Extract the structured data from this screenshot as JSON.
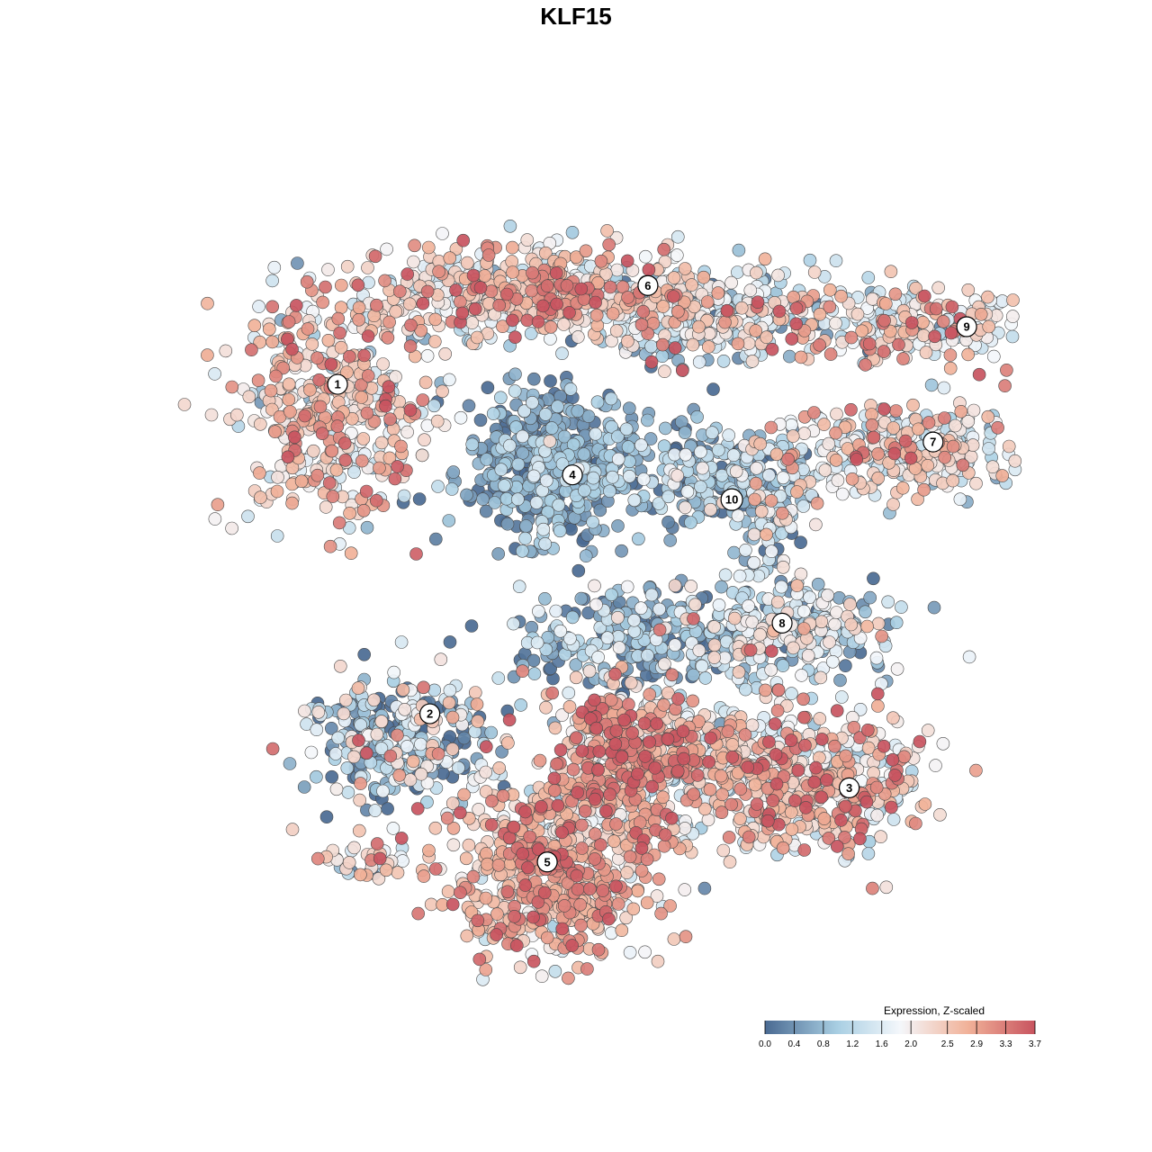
{
  "chart_data": {
    "type": "scatter",
    "title": "KLF15",
    "xlabel": "",
    "ylabel": "",
    "xlim": [
      0,
      100
    ],
    "ylim": [
      0,
      100
    ],
    "grid": false,
    "legend": {
      "title": "Expression, Z-scaled",
      "placement": "bottom-right",
      "ticks": [
        "0.0",
        "0.4",
        "0.8",
        "1.2",
        "1.6",
        "2.0",
        "2.5",
        "2.9",
        "3.3",
        "3.7"
      ],
      "min": 0,
      "max": 3.7
    },
    "colors": {
      "low": "#4a6a92",
      "mid_low": "#a9cfe3",
      "mid": "#f4f7fb",
      "mid_high": "#f1b299",
      "high": "#c8545f"
    },
    "clusters": [
      {
        "label": "1",
        "x": 19,
        "y": 73
      },
      {
        "label": "2",
        "x": 30,
        "y": 33
      },
      {
        "label": "3",
        "x": 80,
        "y": 24
      },
      {
        "label": "4",
        "x": 47,
        "y": 62
      },
      {
        "label": "5",
        "x": 44,
        "y": 15
      },
      {
        "label": "6",
        "x": 56,
        "y": 85
      },
      {
        "label": "7",
        "x": 90,
        "y": 66
      },
      {
        "label": "8",
        "x": 72,
        "y": 44
      },
      {
        "label": "9",
        "x": 94,
        "y": 80
      },
      {
        "label": "10",
        "x": 66,
        "y": 59
      }
    ],
    "regions": [
      {
        "cluster": "1",
        "cx": 18,
        "cy": 70,
        "sx": 8,
        "sy": 9,
        "n": 420,
        "mean": 2.3,
        "sd": 0.75
      },
      {
        "cluster": "6",
        "cx": 42,
        "cy": 84,
        "sx": 14,
        "sy": 3.5,
        "n": 520,
        "mean": 2.2,
        "sd": 0.8
      },
      {
        "cluster": "6b",
        "cx": 64,
        "cy": 81,
        "sx": 10,
        "sy": 4,
        "n": 320,
        "mean": 1.6,
        "sd": 0.95
      },
      {
        "cluster": "4",
        "cx": 45,
        "cy": 63,
        "sx": 7,
        "sy": 6,
        "n": 520,
        "mean": 0.55,
        "sd": 0.5
      },
      {
        "cluster": "10",
        "cx": 64,
        "cy": 62,
        "sx": 5,
        "sy": 4,
        "n": 170,
        "mean": 0.8,
        "sd": 0.7
      },
      {
        "cluster": "9",
        "cx": 88,
        "cy": 80,
        "sx": 9,
        "sy": 3.5,
        "n": 200,
        "mean": 2.0,
        "sd": 0.8
      },
      {
        "cluster": "7",
        "cx": 86,
        "cy": 65,
        "sx": 11,
        "sy": 4,
        "n": 300,
        "mean": 2.0,
        "sd": 0.8
      },
      {
        "cluster": "7b",
        "cx": 71,
        "cy": 58,
        "sx": 3,
        "sy": 6,
        "n": 140,
        "mean": 1.0,
        "sd": 0.8
      },
      {
        "cluster": "8",
        "cx": 72,
        "cy": 43,
        "sx": 8,
        "sy": 4,
        "n": 300,
        "mean": 1.2,
        "sd": 0.85
      },
      {
        "cluster": "8b",
        "cx": 53,
        "cy": 42,
        "sx": 9,
        "sy": 4,
        "n": 220,
        "mean": 0.7,
        "sd": 0.7
      },
      {
        "cluster": "2",
        "cx": 26,
        "cy": 30,
        "sx": 7,
        "sy": 5,
        "n": 300,
        "mean": 1.1,
        "sd": 1.0
      },
      {
        "cluster": "3",
        "cx": 73,
        "cy": 25,
        "sx": 11,
        "sy": 6,
        "n": 540,
        "mean": 2.3,
        "sd": 0.85
      },
      {
        "cluster": "3b",
        "cx": 54,
        "cy": 28,
        "sx": 8,
        "sy": 5.5,
        "n": 420,
        "mean": 2.7,
        "sd": 0.7
      },
      {
        "cluster": "5",
        "cx": 45,
        "cy": 14,
        "sx": 9,
        "sy": 7,
        "n": 620,
        "mean": 2.6,
        "sd": 0.65
      },
      {
        "cluster": "s",
        "cx": 22,
        "cy": 15,
        "sx": 3.5,
        "sy": 1.6,
        "n": 35,
        "mean": 2.2,
        "sd": 1.0
      }
    ]
  }
}
